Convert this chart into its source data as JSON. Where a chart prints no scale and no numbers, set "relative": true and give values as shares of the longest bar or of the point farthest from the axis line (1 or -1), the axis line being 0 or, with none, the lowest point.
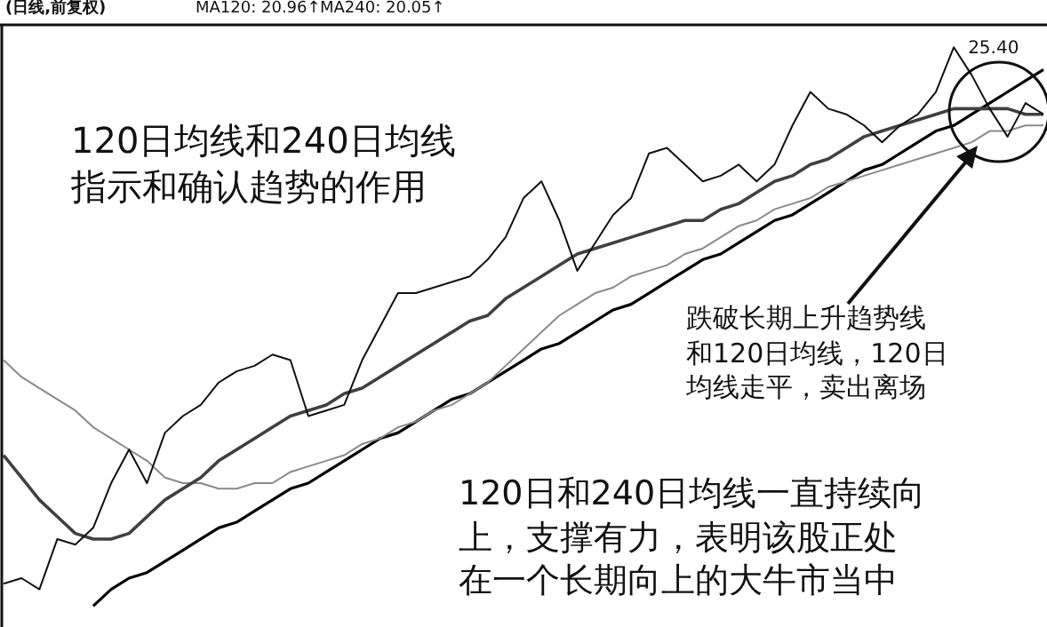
{
  "chart_data": {
    "type": "line",
    "relative": true,
    "title": "(日线,前复权)",
    "legend": false,
    "marker": "none",
    "line_style": "solid",
    "categories": [
      null,
      null,
      null,
      null,
      null,
      null,
      null,
      null,
      null,
      null,
      null,
      null,
      null,
      null,
      null,
      null,
      null,
      null,
      null,
      null,
      null,
      null,
      null,
      null,
      null,
      null,
      null,
      null,
      null,
      null,
      null,
      null,
      null,
      null,
      null,
      null,
      null,
      null,
      null,
      null,
      null,
      null,
      null,
      null,
      null,
      null,
      null,
      null,
      null,
      null,
      null,
      null,
      null,
      null,
      null,
      null,
      null,
      null,
      null
    ],
    "series": [
      {
        "color": "#111111",
        "values": [
          0.04,
          0.05,
          0.03,
          0.12,
          0.11,
          0.14,
          0.22,
          0.28,
          0.22,
          0.31,
          0.34,
          0.36,
          0.4,
          0.42,
          0.43,
          0.45,
          0.44,
          0.34,
          0.35,
          0.36,
          0.44,
          0.5,
          0.56,
          0.56,
          0.57,
          0.58,
          0.59,
          0.62,
          0.66,
          0.73,
          0.76,
          0.69,
          0.6,
          0.65,
          0.7,
          0.73,
          0.81,
          0.82,
          0.79,
          0.76,
          0.77,
          0.79,
          0.76,
          0.79,
          0.86,
          0.92,
          0.89,
          0.88,
          0.86,
          0.83,
          0.86,
          0.88,
          0.92,
          1,
          0.95,
          0.89,
          0.84,
          0.9,
          0.88
        ]
      },
      {
        "color": "#404040",
        "values": [
          0.27,
          0.23,
          0.19,
          0.16,
          0.13,
          0.12,
          0.12,
          0.13,
          0.16,
          0.19,
          0.21,
          0.23,
          0.26,
          0.28,
          0.3,
          0.32,
          0.34,
          0.35,
          0.36,
          0.38,
          0.39,
          0.41,
          0.43,
          0.45,
          0.47,
          0.49,
          0.51,
          0.52,
          0.55,
          0.57,
          0.59,
          0.61,
          0.63,
          0.64,
          0.65,
          0.66,
          0.67,
          0.68,
          0.69,
          0.69,
          0.71,
          0.72,
          0.74,
          0.76,
          0.77,
          0.79,
          0.8,
          0.82,
          0.84,
          0.85,
          0.86,
          0.87,
          0.88,
          0.89,
          0.89,
          0.89,
          0.89,
          0.88,
          0.88
        ]
      },
      {
        "color": "#8a8a8a",
        "values": [
          0.44,
          0.41,
          0.39,
          0.37,
          0.35,
          0.32,
          0.3,
          0.28,
          0.26,
          0.23,
          0.22,
          0.22,
          0.21,
          0.21,
          0.22,
          0.22,
          0.24,
          0.25,
          0.26,
          0.27,
          0.29,
          0.3,
          0.32,
          0.33,
          0.35,
          0.36,
          0.38,
          0.4,
          0.43,
          0.46,
          0.49,
          0.52,
          0.54,
          0.56,
          0.57,
          0.59,
          0.6,
          0.61,
          0.63,
          0.64,
          0.66,
          0.68,
          0.69,
          0.71,
          0.72,
          0.73,
          0.75,
          0.76,
          0.77,
          0.78,
          0.79,
          0.8,
          0.81,
          0.82,
          0.83,
          0.85,
          0.85,
          0.86,
          0.86
        ]
      },
      {
        "color": "#000000",
        "values": [
          null,
          null,
          null,
          null,
          null,
          0,
          0.03,
          0.05,
          0.06,
          0.08,
          0.1,
          0.12,
          0.14,
          0.15,
          0.17,
          0.19,
          0.21,
          0.22,
          0.24,
          0.26,
          0.28,
          0.3,
          0.31,
          0.33,
          0.35,
          0.37,
          0.38,
          0.4,
          0.42,
          0.44,
          0.46,
          0.47,
          0.49,
          0.51,
          0.53,
          0.54,
          0.56,
          0.58,
          0.6,
          0.62,
          0.63,
          0.65,
          0.67,
          0.69,
          0.7,
          0.72,
          0.74,
          0.76,
          0.78,
          0.79,
          0.81,
          0.83,
          0.85,
          0.86,
          0.88,
          0.9,
          0.92,
          0.94,
          0.96
        ]
      }
    ],
    "annotations": [
      "MA120: 20.96↑",
      "MA240: 20.05↑",
      "25.40",
      "120日均线和240日均线指示和确认趋势的作用",
      "跌破长期上升趋势线和120日均线，120日均线走平，卖出离场",
      "120日和240日均线一直持续向上，支撑有力，表明该股正处在一个长期向上的大牛市当中"
    ]
  }
}
